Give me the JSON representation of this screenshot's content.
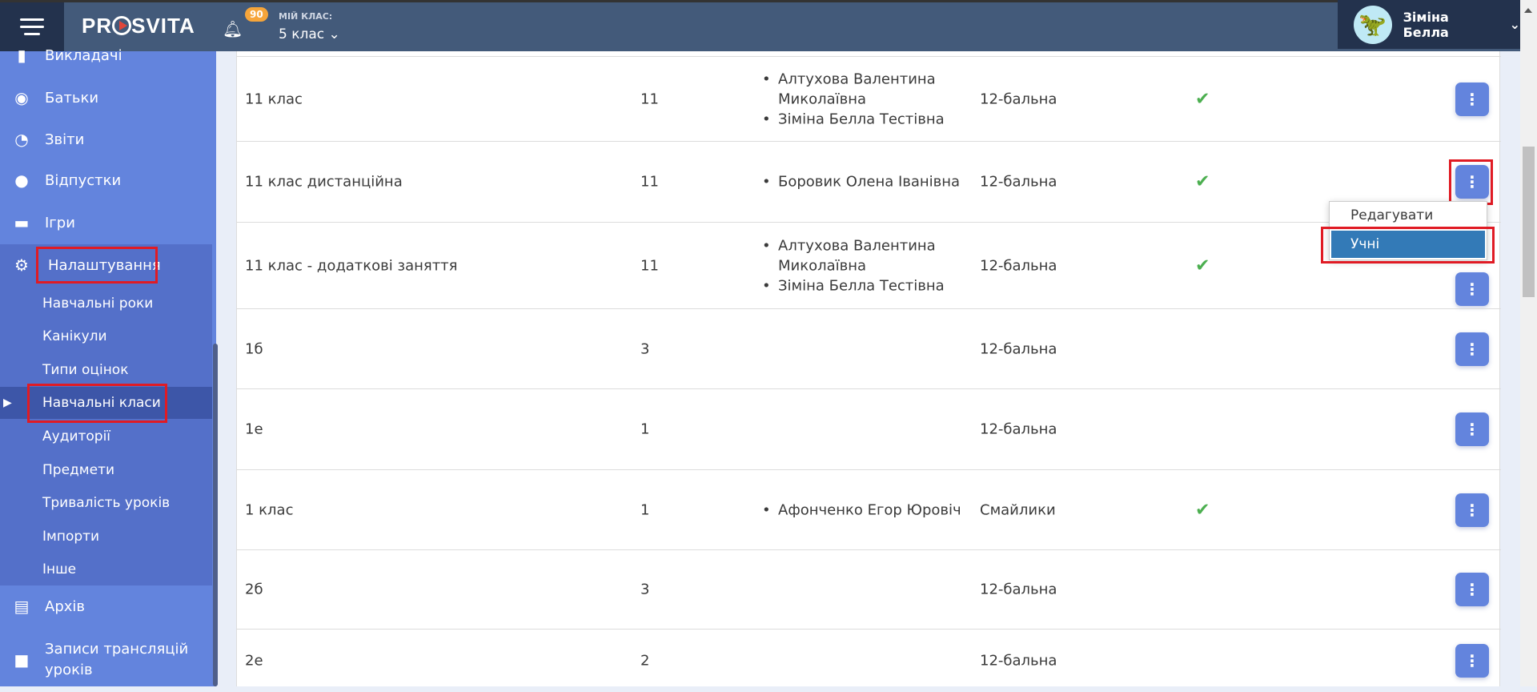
{
  "header": {
    "logo": "PROSVITA",
    "notifications": "90",
    "my_class_label": "МІЙ КЛАС:",
    "my_class": "5 клас",
    "user_name": "Зіміна Белла"
  },
  "sidebar": {
    "items": [
      {
        "label": "Викладачі",
        "icon": "tie-icon"
      },
      {
        "label": "Батьки",
        "icon": "user-circle-icon"
      },
      {
        "label": "Звіти",
        "icon": "pie-chart-icon"
      },
      {
        "label": "Відпустки",
        "icon": "circle-icon"
      },
      {
        "label": "Ігри",
        "icon": "gamepad-icon"
      },
      {
        "label": "Налаштування",
        "icon": "gears-icon"
      },
      {
        "label": "Архів",
        "icon": "archive-icon"
      },
      {
        "label": "Записи трансляцій уроків",
        "icon": "video-camera-icon"
      }
    ],
    "settings_sub": [
      "Навчальні роки",
      "Канікули",
      "Типи оцінок",
      "Навчальні класи",
      "Аудиторії",
      "Предмети",
      "Тривалість уроків",
      "Імпорти",
      "Інше"
    ],
    "active_sub": "Навчальні класи"
  },
  "table": {
    "rows": [
      {
        "name": "11 клас",
        "grade": "11",
        "teachers": [
          "Алтухова Валентина Миколаївна",
          "Зіміна Белла Тестівна"
        ],
        "scale": "12-бальна",
        "checked": true
      },
      {
        "name": "11 клас дистанційна",
        "grade": "11",
        "teachers": [
          "Боровик Олена Іванівна"
        ],
        "scale": "12-бальна",
        "checked": true
      },
      {
        "name": "11 клас - додаткові заняття",
        "grade": "11",
        "teachers": [
          "Алтухова Валентина Миколаївна",
          "Зіміна Белла Тестівна"
        ],
        "scale": "12-бальна",
        "checked": true
      },
      {
        "name": "1б",
        "grade": "3",
        "teachers": [],
        "scale": "12-бальна",
        "checked": false
      },
      {
        "name": "1е",
        "grade": "1",
        "teachers": [],
        "scale": "12-бальна",
        "checked": false
      },
      {
        "name": "1 клас",
        "grade": "1",
        "teachers": [
          "Афонченко Егор Юровіч"
        ],
        "scale": "Смайлики",
        "checked": true
      },
      {
        "name": "2б",
        "grade": "3",
        "teachers": [],
        "scale": "12-бальна",
        "checked": false
      },
      {
        "name": "2е",
        "grade": "2",
        "teachers": [],
        "scale": "12-бальна",
        "checked": false
      }
    ]
  },
  "menu": {
    "edit": "Редагувати",
    "students": "Учні"
  },
  "colors": {
    "sidebar": "#6384dd",
    "header": "#435a7a",
    "accent": "#337ab7",
    "highlight": "#e01b24"
  }
}
